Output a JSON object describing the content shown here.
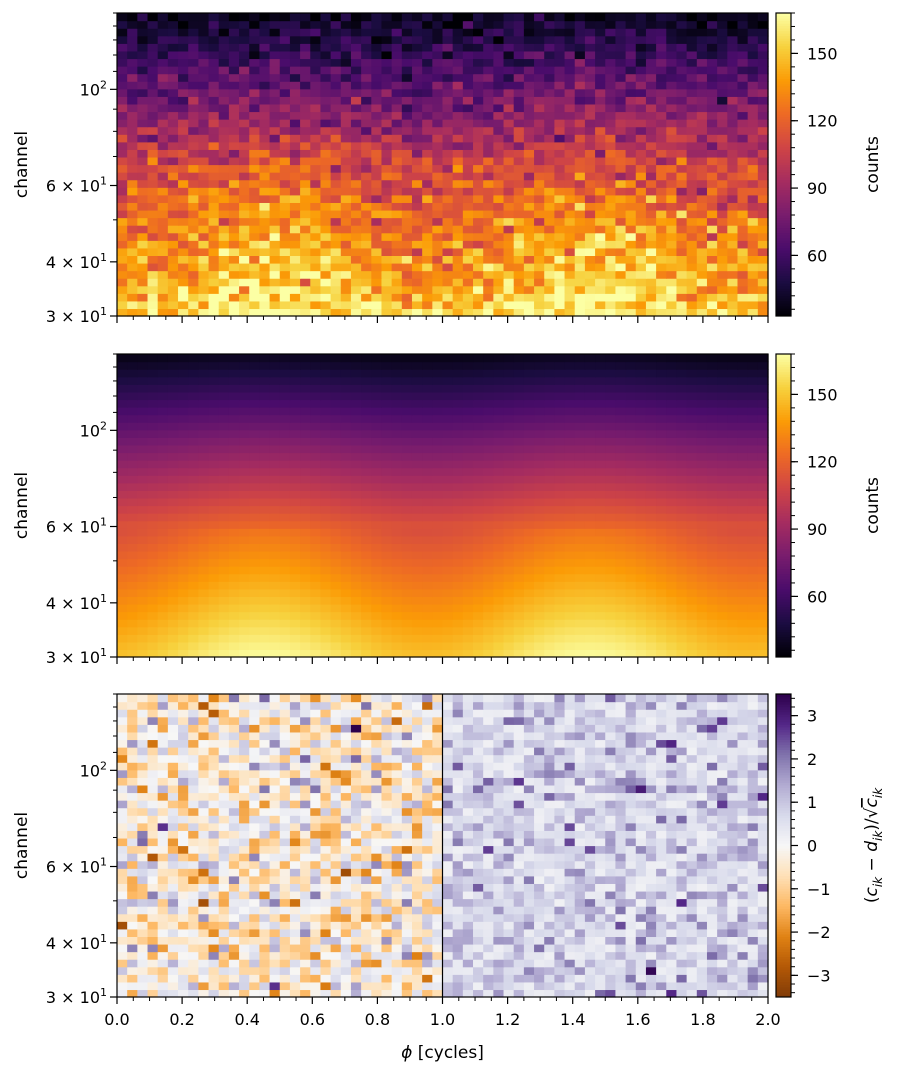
{
  "chart_data": [
    {
      "type": "heatmap",
      "panel": "data",
      "ylabel": "channel",
      "yscale": "log",
      "ylim": [
        30,
        150
      ],
      "xlim": [
        0,
        2
      ],
      "y_ticks": [
        {
          "value": 30,
          "mantissa": "3",
          "exp": "1"
        },
        {
          "value": 40,
          "mantissa": "4",
          "exp": "1"
        },
        {
          "value": 60,
          "mantissa": "6",
          "exp": "1"
        },
        {
          "value": 100,
          "mantissa": "",
          "exp": "2"
        }
      ],
      "colorbar": {
        "label": "counts",
        "cmap": "inferno",
        "range": [
          33,
          168
        ],
        "ticks": [
          "60",
          "90",
          "120",
          "150"
        ],
        "tick_values": [
          60,
          90,
          120,
          150
        ]
      },
      "noise": "poisson",
      "n_phase_bins": 64,
      "n_channels": 40
    },
    {
      "type": "heatmap",
      "panel": "model",
      "ylabel": "channel",
      "yscale": "log",
      "ylim": [
        30,
        150
      ],
      "xlim": [
        0,
        2
      ],
      "y_ticks": [
        {
          "value": 30,
          "mantissa": "3",
          "exp": "1"
        },
        {
          "value": 40,
          "mantissa": "4",
          "exp": "1"
        },
        {
          "value": 60,
          "mantissa": "6",
          "exp": "1"
        },
        {
          "value": 100,
          "mantissa": "",
          "exp": "2"
        }
      ],
      "colorbar": {
        "label": "counts",
        "cmap": "inferno",
        "range": [
          33,
          168
        ],
        "ticks": [
          "60",
          "90",
          "120",
          "150"
        ],
        "tick_values": [
          60,
          90,
          120,
          150
        ]
      },
      "noise": "none",
      "n_phase_bins": 64,
      "n_channels": 40
    },
    {
      "type": "heatmap",
      "panel": "residuals",
      "xlabel": "ϕ [cycles]",
      "ylabel": "channel",
      "yscale": "log",
      "ylim": [
        30,
        150
      ],
      "xlim": [
        0,
        2
      ],
      "x_ticks": [
        "0.0",
        "0.2",
        "0.4",
        "0.6",
        "0.8",
        "1.0",
        "1.2",
        "1.4",
        "1.6",
        "1.8",
        "2.0"
      ],
      "y_ticks": [
        {
          "value": 30,
          "mantissa": "3",
          "exp": "1"
        },
        {
          "value": 40,
          "mantissa": "4",
          "exp": "1"
        },
        {
          "value": 60,
          "mantissa": "6",
          "exp": "1"
        },
        {
          "value": 100,
          "mantissa": "",
          "exp": "2"
        }
      ],
      "divider_at": 1.0,
      "colorbar": {
        "label": "(c_ik − d_ik)/√c_ik",
        "cmap": "PuOr",
        "range": [
          -3.5,
          3.5
        ],
        "ticks": [
          "3",
          "2",
          "1",
          "0",
          "−1",
          "−2",
          "−3"
        ],
        "tick_values": [
          3,
          2,
          1,
          0,
          -1,
          -2,
          -3
        ]
      },
      "n_phase_bins": 64,
      "n_channels": 40
    }
  ],
  "colors": {
    "inferno": [
      "#000004",
      "#1b0c41",
      "#4a0c6b",
      "#781c6d",
      "#a52c60",
      "#cf4446",
      "#ed6925",
      "#fb9b06",
      "#f7d13d",
      "#fcffa4"
    ],
    "puor": [
      "#7f3b08",
      "#b35806",
      "#e08214",
      "#fdb863",
      "#fee0b6",
      "#f7f7f7",
      "#d8daeb",
      "#b2abd2",
      "#8073ac",
      "#542788",
      "#2d004b"
    ]
  }
}
